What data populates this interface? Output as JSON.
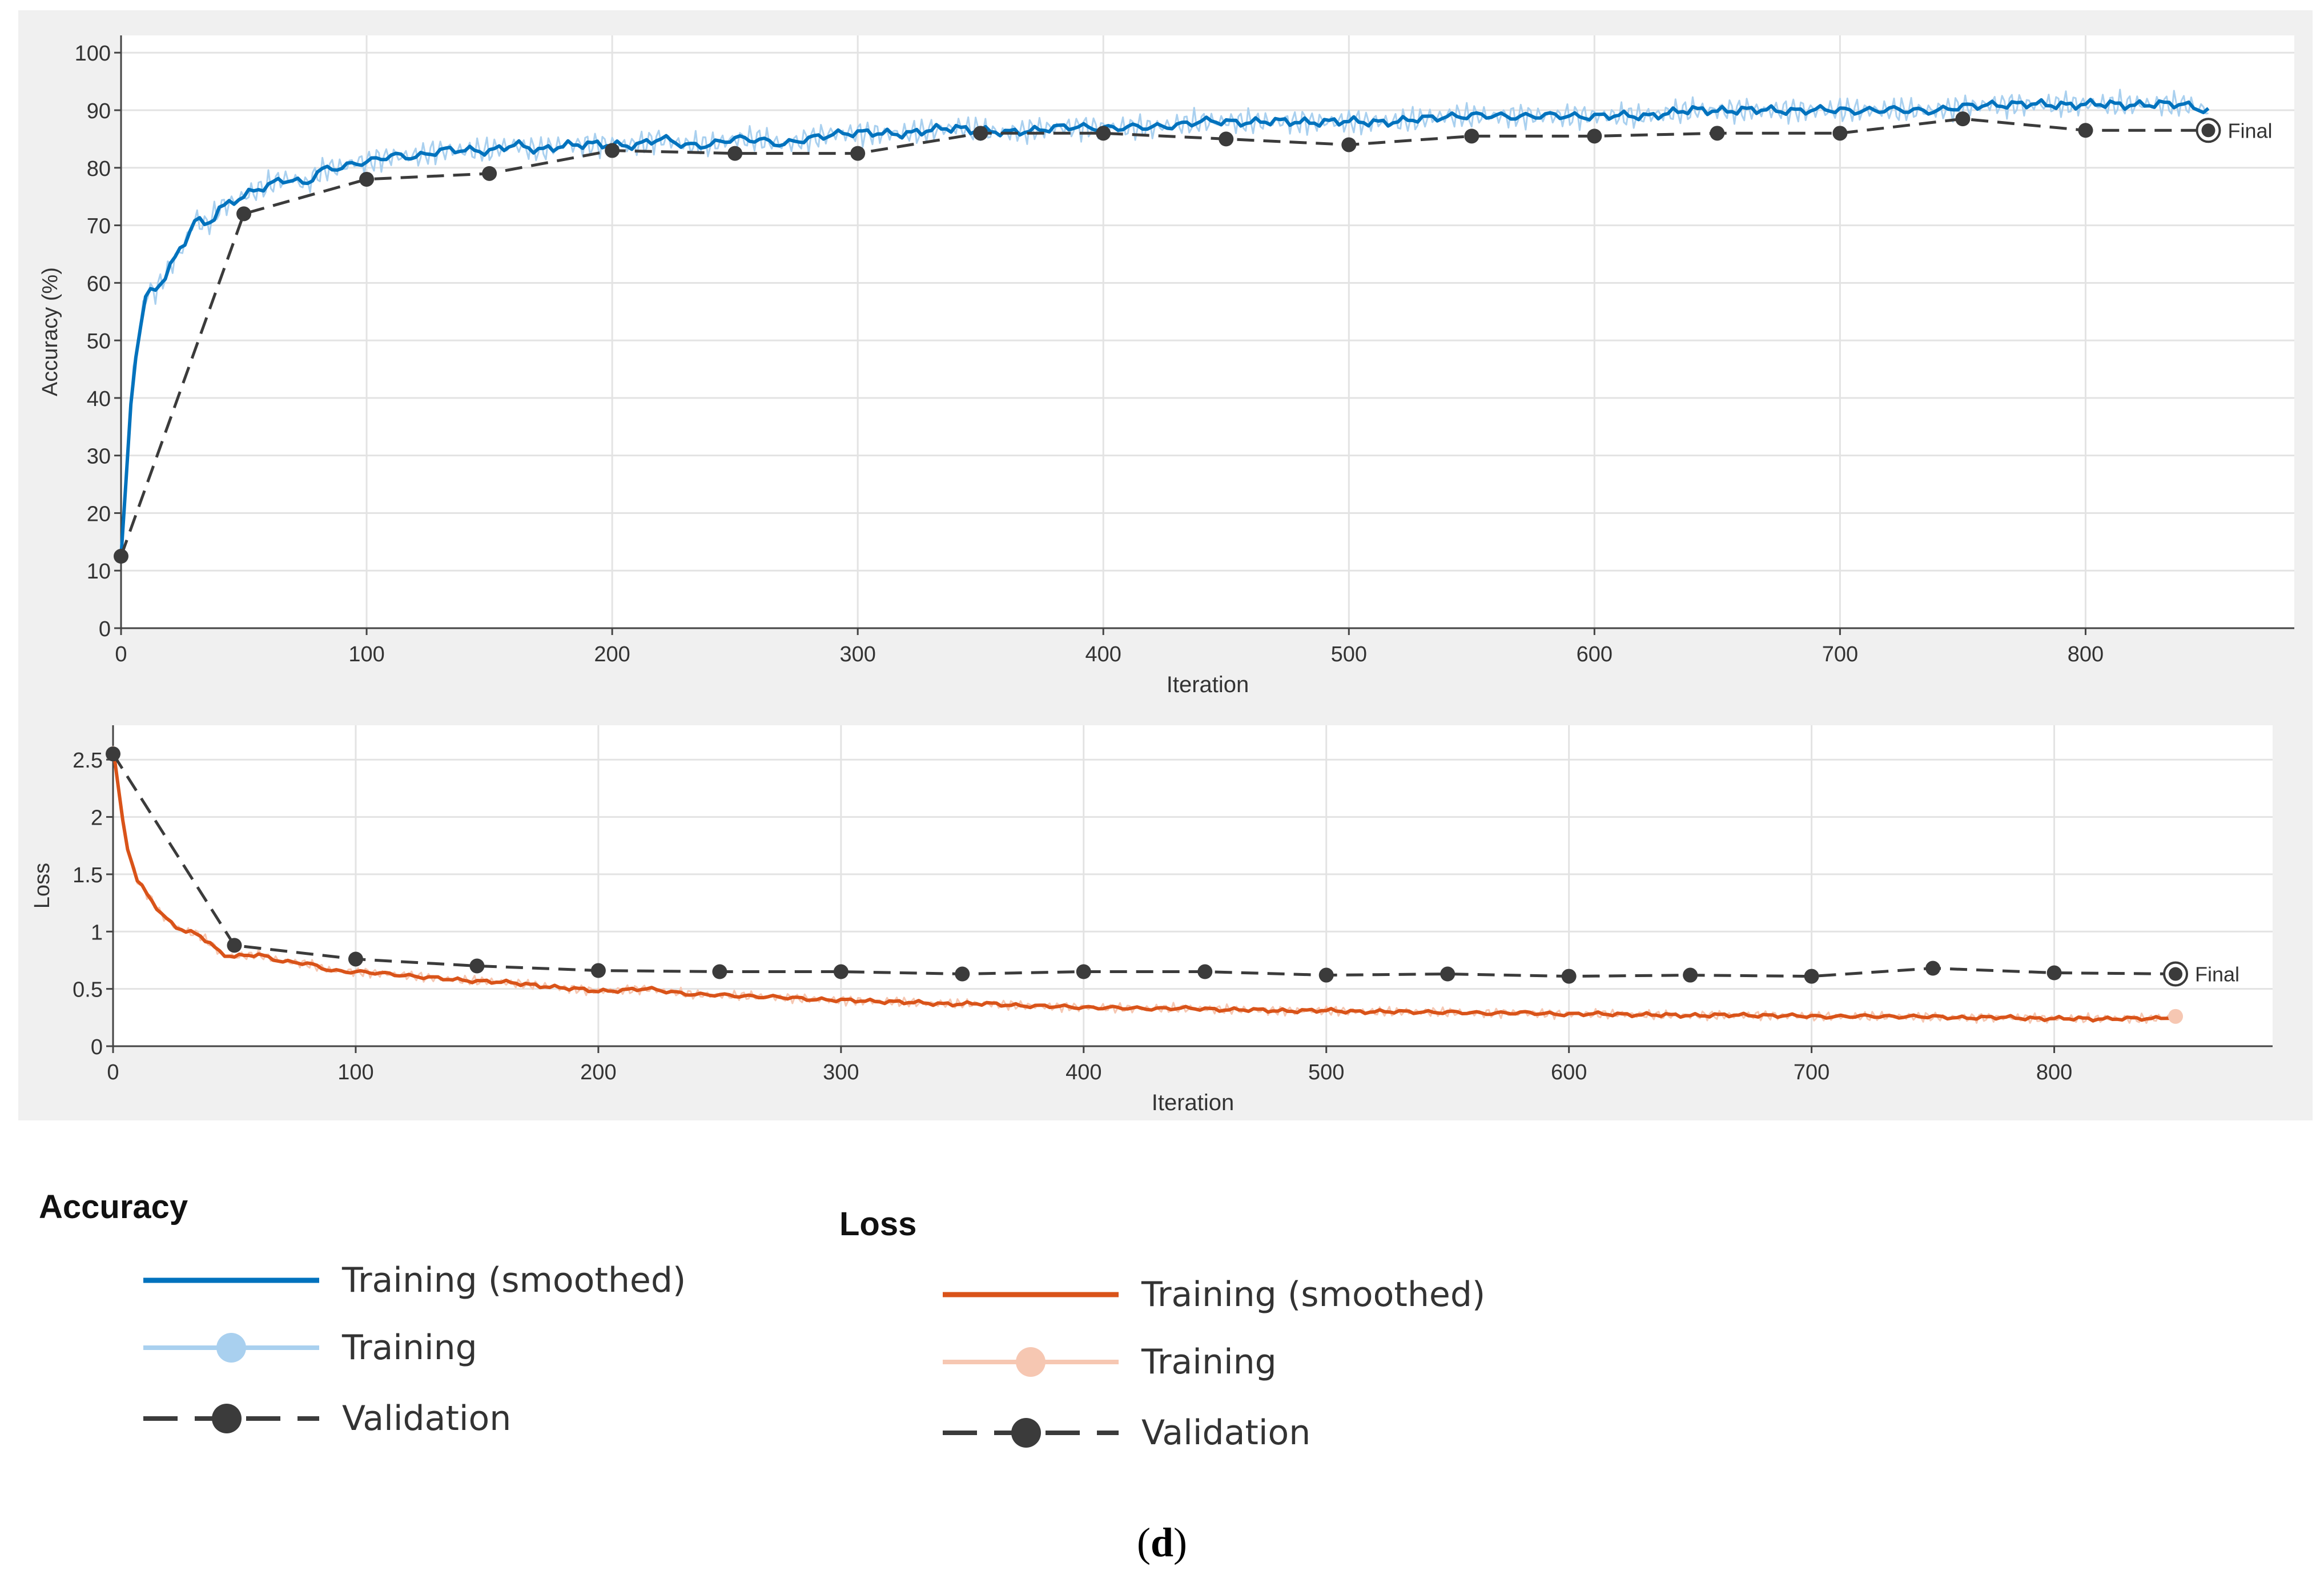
{
  "caption": {
    "open": "(",
    "letter": "d",
    "close": ")"
  },
  "colors": {
    "acc_smoothed": "#0072BD",
    "acc_raw": "#A9D0EF",
    "loss_smoothed": "#D95319",
    "loss_raw": "#F6C7B2",
    "validation": "#3b3b3b"
  },
  "legend": {
    "accuracy": {
      "title": "Accuracy",
      "items": [
        {
          "label": "Training (smoothed)",
          "style": "smoothed"
        },
        {
          "label": "Training",
          "style": "raw"
        },
        {
          "label": "Validation",
          "style": "validation"
        }
      ]
    },
    "loss": {
      "title": "Loss",
      "items": [
        {
          "label": "Training (smoothed)",
          "style": "smoothed"
        },
        {
          "label": "Training",
          "style": "raw"
        },
        {
          "label": "Validation",
          "style": "validation"
        }
      ]
    }
  },
  "chart_data": [
    {
      "type": "line",
      "title": "Accuracy",
      "xlabel": "Iteration",
      "ylabel": "Accuracy (%)",
      "xlim": [
        0,
        885
      ],
      "ylim": [
        0,
        103
      ],
      "xticks": [
        0,
        100,
        200,
        300,
        400,
        500,
        600,
        700,
        800
      ],
      "yticks": [
        0,
        10,
        20,
        30,
        40,
        50,
        60,
        70,
        80,
        90,
        100
      ],
      "final_label": "Final",
      "series": [
        {
          "name": "Training (smoothed)",
          "x": [
            0,
            5,
            10,
            15,
            20,
            25,
            30,
            35,
            40,
            45,
            50,
            55,
            60,
            65,
            70,
            75,
            80,
            85,
            90,
            95,
            100,
            110,
            120,
            130,
            140,
            150,
            160,
            170,
            180,
            190,
            200,
            210,
            220,
            230,
            240,
            250,
            260,
            270,
            280,
            290,
            300,
            320,
            340,
            360,
            380,
            400,
            420,
            440,
            460,
            480,
            500,
            520,
            540,
            560,
            580,
            600,
            620,
            640,
            660,
            680,
            700,
            720,
            740,
            760,
            780,
            800,
            820,
            840,
            850
          ],
          "values": [
            12,
            45,
            58,
            59,
            63,
            66,
            71,
            70,
            73,
            74,
            75,
            76,
            77,
            78,
            78,
            77,
            79,
            80,
            80,
            81,
            81,
            82,
            82,
            83,
            83,
            83,
            84,
            83,
            84,
            84,
            84,
            84,
            85,
            84,
            84,
            85,
            85,
            84,
            85,
            86,
            86,
            86,
            87,
            86,
            87,
            87,
            87,
            88,
            88,
            88,
            88,
            88,
            89,
            89,
            89,
            89,
            89,
            90,
            90,
            90,
            90,
            90,
            90,
            91,
            91,
            91,
            91,
            91,
            90
          ]
        },
        {
          "name": "Validation",
          "x": [
            0,
            50,
            100,
            150,
            200,
            250,
            300,
            350,
            400,
            450,
            500,
            550,
            600,
            650,
            700,
            750,
            800,
            850
          ],
          "values": [
            12.5,
            72,
            78,
            79,
            83,
            82.5,
            82.5,
            86,
            86,
            85,
            84,
            85.5,
            85.5,
            86,
            86,
            88.5,
            86.5,
            86.5
          ]
        }
      ]
    },
    {
      "type": "line",
      "title": "Loss",
      "xlabel": "Iteration",
      "ylabel": "Loss",
      "xlim": [
        0,
        890
      ],
      "ylim": [
        0,
        2.8
      ],
      "xticks": [
        0,
        100,
        200,
        300,
        400,
        500,
        600,
        700,
        800
      ],
      "yticks": [
        0,
        0.5,
        1,
        1.5,
        2,
        2.5
      ],
      "final_label": "Final",
      "series": [
        {
          "name": "Training (smoothed)",
          "x": [
            0,
            5,
            10,
            15,
            20,
            25,
            30,
            35,
            40,
            45,
            50,
            60,
            70,
            80,
            90,
            100,
            120,
            140,
            160,
            180,
            200,
            220,
            240,
            260,
            280,
            300,
            320,
            340,
            360,
            380,
            400,
            420,
            440,
            460,
            480,
            500,
            520,
            540,
            560,
            580,
            600,
            620,
            640,
            660,
            680,
            700,
            720,
            740,
            760,
            780,
            800,
            820,
            840,
            850
          ],
          "values": [
            2.6,
            1.8,
            1.45,
            1.3,
            1.15,
            1.05,
            1.0,
            0.98,
            0.9,
            0.8,
            0.78,
            0.8,
            0.74,
            0.72,
            0.66,
            0.65,
            0.62,
            0.58,
            0.56,
            0.52,
            0.48,
            0.5,
            0.45,
            0.44,
            0.42,
            0.4,
            0.39,
            0.37,
            0.37,
            0.35,
            0.34,
            0.33,
            0.33,
            0.32,
            0.31,
            0.31,
            0.3,
            0.3,
            0.29,
            0.29,
            0.28,
            0.28,
            0.27,
            0.27,
            0.27,
            0.26,
            0.26,
            0.26,
            0.25,
            0.25,
            0.24,
            0.24,
            0.24,
            0.26
          ]
        },
        {
          "name": "Validation",
          "x": [
            0,
            50,
            100,
            150,
            200,
            250,
            300,
            350,
            400,
            450,
            500,
            550,
            600,
            650,
            700,
            750,
            800,
            850
          ],
          "values": [
            2.55,
            0.88,
            0.76,
            0.7,
            0.66,
            0.65,
            0.65,
            0.63,
            0.65,
            0.65,
            0.62,
            0.63,
            0.61,
            0.62,
            0.61,
            0.68,
            0.64,
            0.63
          ]
        }
      ]
    }
  ]
}
